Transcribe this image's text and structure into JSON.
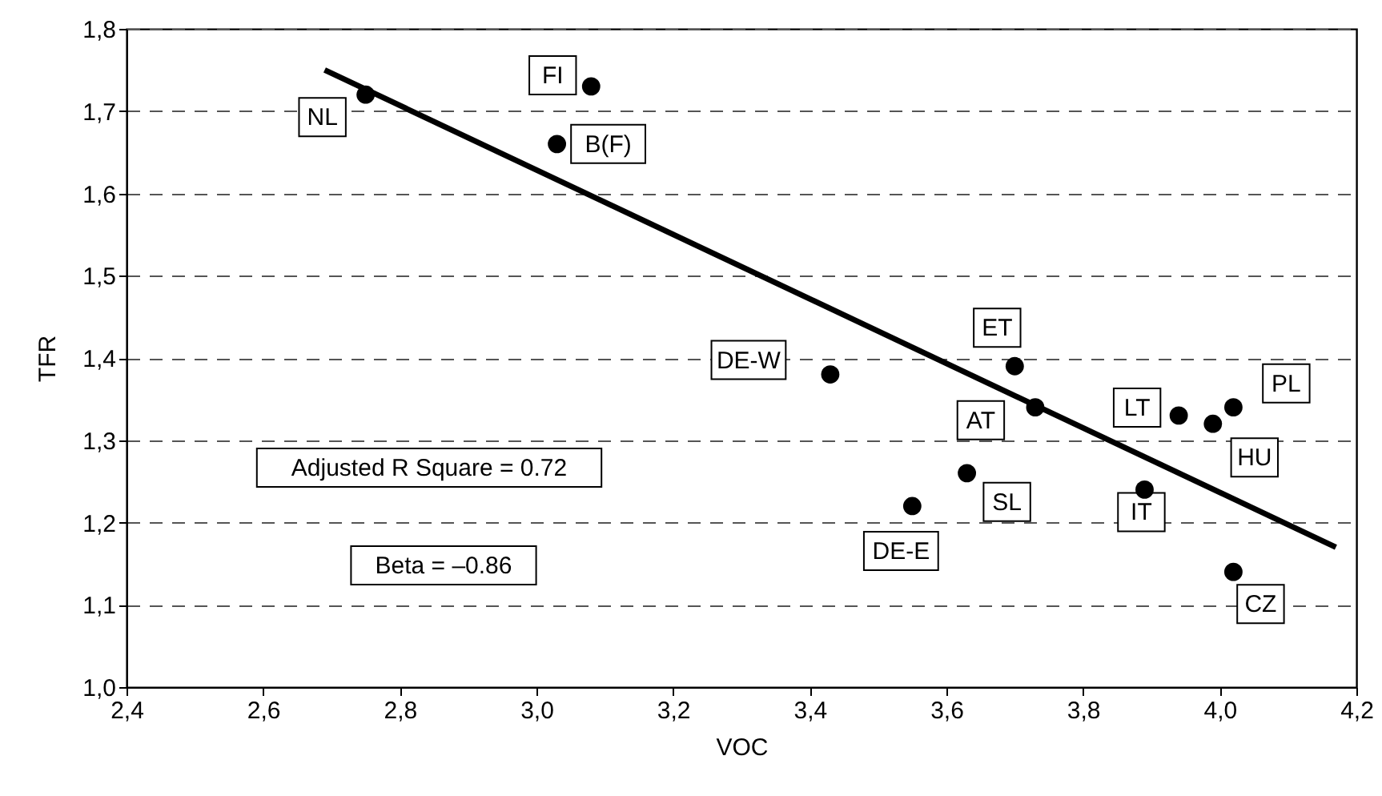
{
  "chart_data": {
    "type": "scatter",
    "xlabel": "VOC",
    "ylabel": "TFR",
    "xlim": [
      2.4,
      4.2
    ],
    "xticks": [
      {
        "value": 2.4,
        "label": "2,4"
      },
      {
        "value": 2.6,
        "label": "2,6"
      },
      {
        "value": 2.8,
        "label": "2,8"
      },
      {
        "value": 3.0,
        "label": "3,0"
      },
      {
        "value": 3.2,
        "label": "3,2"
      },
      {
        "value": 3.4,
        "label": "3,4"
      },
      {
        "value": 3.6,
        "label": "3,6"
      },
      {
        "value": 3.8,
        "label": "3,8"
      },
      {
        "value": 4.0,
        "label": "4,0"
      },
      {
        "value": 4.2,
        "label": "4,2"
      }
    ],
    "ylim": [
      1.0,
      1.8
    ],
    "yticks": [
      {
        "value": 1.0,
        "label": "1,0"
      },
      {
        "value": 1.1,
        "label": "1,1"
      },
      {
        "value": 1.2,
        "label": "1,2"
      },
      {
        "value": 1.3,
        "label": "1,3"
      },
      {
        "value": 1.4,
        "label": "1,4"
      },
      {
        "value": 1.5,
        "label": "1,5"
      },
      {
        "value": 1.6,
        "label": "1,6"
      },
      {
        "value": 1.7,
        "label": "1,7"
      },
      {
        "value": 1.8,
        "label": "1,8"
      }
    ],
    "grid": "y",
    "series": [
      {
        "marker": "circle",
        "color": "#000000",
        "x": [
          2.75,
          3.08,
          3.03,
          3.43,
          3.7,
          3.73,
          3.94,
          3.99,
          4.02,
          3.63,
          3.55,
          3.89,
          4.02
        ],
        "values": [
          1.72,
          1.73,
          1.66,
          1.38,
          1.39,
          1.34,
          1.33,
          1.32,
          1.34,
          1.26,
          1.22,
          1.24,
          1.14
        ]
      },
      {
        "type": "line",
        "color": "#000000",
        "line_style": "solid",
        "x": [
          2.69,
          4.17
        ],
        "values": [
          1.75,
          1.17
        ]
      }
    ],
    "annotations": [
      {
        "text": "NL",
        "x": 2.75,
        "y": 1.72
      },
      {
        "text": "FI",
        "x": 3.08,
        "y": 1.73
      },
      {
        "text": "B(F)",
        "x": 3.03,
        "y": 1.66
      },
      {
        "text": "DE-W",
        "x": 3.43,
        "y": 1.38
      },
      {
        "text": "ET",
        "x": 3.7,
        "y": 1.39
      },
      {
        "text": "AT",
        "x": 3.73,
        "y": 1.34
      },
      {
        "text": "LT",
        "x": 3.94,
        "y": 1.33
      },
      {
        "text": "HU",
        "x": 3.99,
        "y": 1.32
      },
      {
        "text": "PL",
        "x": 4.02,
        "y": 1.34
      },
      {
        "text": "SL",
        "x": 3.63,
        "y": 1.26
      },
      {
        "text": "DE-E",
        "x": 3.55,
        "y": 1.22
      },
      {
        "text": "IT",
        "x": 3.89,
        "y": 1.24
      },
      {
        "text": "CZ",
        "x": 4.02,
        "y": 1.14
      },
      "Adjusted R Square = 0.72",
      "Beta = –0.86"
    ]
  }
}
